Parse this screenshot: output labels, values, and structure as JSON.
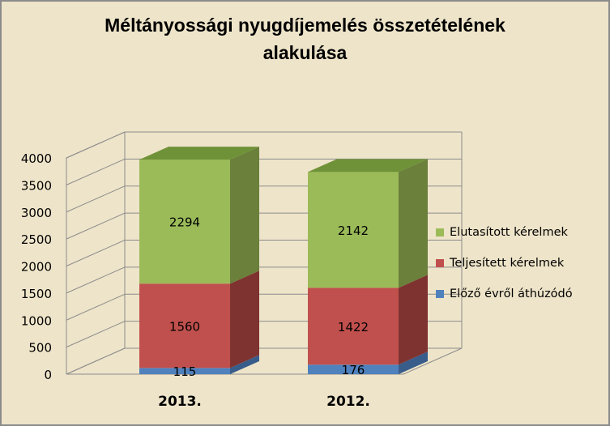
{
  "colors": {
    "background": "#eee4c9",
    "border": "#8c8c8c",
    "gridline": "#8c8c8c",
    "series_front": [
      "#4f81bd",
      "#c0504d",
      "#9bbb59"
    ],
    "series_side": [
      "#385d8a",
      "#7f3331",
      "#6a803b"
    ],
    "series_top": [
      "#3f6aa0",
      "#a33e3c",
      "#6f9238"
    ]
  },
  "chart_data": {
    "type": "bar",
    "stacked": true,
    "three_d": true,
    "title": "Méltányossági nyugdíjemelés összetételének alakulása",
    "title_lines": [
      "Méltányossági nyugdíjemelés összetételének",
      "alakulása"
    ],
    "categories": [
      "2013.",
      "2012."
    ],
    "series": [
      {
        "name": "Előző évről áthúzódó",
        "values": [
          115,
          176
        ]
      },
      {
        "name": "Teljesített kérelmek",
        "values": [
          1560,
          1422
        ]
      },
      {
        "name": "Elutasított kérelmek",
        "values": [
          2294,
          2142
        ]
      }
    ],
    "ylim": [
      0,
      4000
    ],
    "yticks": [
      "0",
      "500",
      "1000",
      "1500",
      "2000",
      "2500",
      "3000",
      "3500",
      "4000"
    ],
    "grid": true,
    "data_labels": true,
    "legend_position": "right",
    "legend_order": [
      "Elutasított kérelmek",
      "Teljesített kérelmek",
      "Előző évről áthúzódó"
    ]
  }
}
